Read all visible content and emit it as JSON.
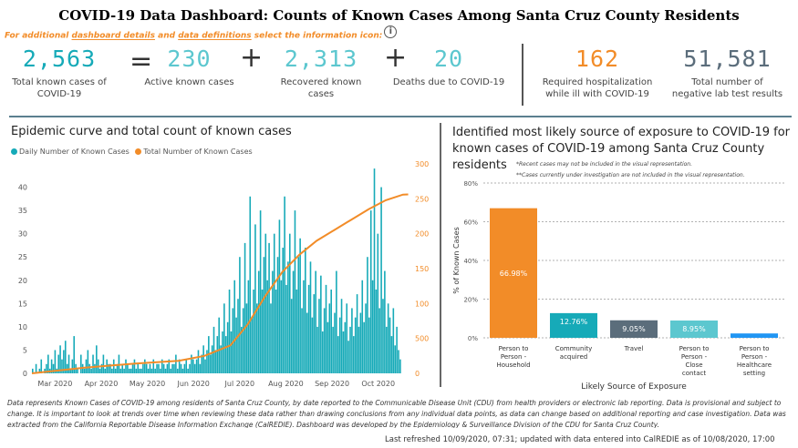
{
  "title": "COVID-19 Data Dashboard: Counts of Known Cases Among Santa Cruz County Residents",
  "info": {
    "prefix": "For additional ",
    "link1": "dashboard details",
    "mid": " and ",
    "link2": "data definitions",
    "suffix": " select the information icon:",
    "icon": "info-icon"
  },
  "kpis": {
    "total": {
      "value": "2,563",
      "label": "Total known cases of COVID-19"
    },
    "active": {
      "value": "230",
      "label": "Active known cases"
    },
    "recovered": {
      "value": "2,313",
      "label": "Recovered known cases"
    },
    "deaths": {
      "value": "20",
      "label": "Deaths due to COVID-19"
    },
    "hospital": {
      "value": "162",
      "label": "Required hospitalization while ill with COVID-19"
    },
    "negative": {
      "value": "51,581",
      "label": "Total number of negative lab test results"
    },
    "eq": "=",
    "plus": "+"
  },
  "colors": {
    "teal": "#16aab8",
    "orange": "#f28c28",
    "slate": "#5b6d7b",
    "blue": "#2196f3",
    "light_teal": "#5cc7cf"
  },
  "epi": {
    "title": "Epidemic curve and total count of known cases",
    "legend_daily": "Daily Number of Known Cases",
    "legend_total": "Total Number of Known Cases"
  },
  "exposure": {
    "title_line1": "Identified most likely source of exposure to COVID-19 for",
    "title_line2": "known cases of COVID-19 among Santa Cruz County",
    "title_line3": "residents",
    "note1": "*Recent cases may not be included in the visual representation.",
    "note2": "**Cases currently under investigation are not included in the visual representation."
  },
  "footer": {
    "text": "Data represents Known Cases of COVID-19 among residents of Santa Cruz County, by date reported to the Communicable Disease Unit (CDU) from health providers or electronic lab reporting.  Data is provisional and subject to change. It is important to look at trends over time when reviewing these data rather than drawing conclusions from any individual data points, as data can change based on additional reporting and case investigation.  Data was extracted from the California Reportable Disease Information Exchange (CalREDIE).  Dashboard was developed by the Epidemiology & Surveillance Division of the CDU for Santa Cruz County.",
    "refresh": "Last refreshed 10/09/2020, 07:31; updated with data entered into CalREDIE as of 10/08/2020, 17:00"
  },
  "chart_data": [
    {
      "type": "bar",
      "title": "Epidemic curve and total count of known cases",
      "x_tick_labels": [
        "Mar 2020",
        "Apr 2020",
        "May 2020",
        "Jun 2020",
        "Jul 2020",
        "Aug 2020",
        "Sep 2020",
        "Oct 2020"
      ],
      "y_left_ticks": [
        0,
        5,
        10,
        15,
        20,
        25,
        30,
        35,
        40
      ],
      "y_right_ticks": [
        0,
        500,
        1000,
        1500,
        2000,
        2500,
        3000
      ],
      "ylim_left": [
        0,
        45
      ],
      "ylim_right": [
        0,
        3000
      ],
      "series": [
        {
          "name": "Daily Number of Known Cases",
          "axis": "left",
          "color": "#16aab8",
          "values": [
            1,
            0,
            2,
            0,
            1,
            3,
            0,
            1,
            2,
            4,
            1,
            3,
            2,
            5,
            1,
            4,
            6,
            3,
            5,
            7,
            2,
            4,
            1,
            3,
            8,
            2,
            1,
            0,
            4,
            2,
            1,
            3,
            5,
            2,
            1,
            4,
            2,
            6,
            3,
            1,
            2,
            4,
            1,
            3,
            2,
            2,
            1,
            3,
            1,
            2,
            4,
            1,
            2,
            1,
            3,
            2,
            1,
            1,
            2,
            3,
            1,
            2,
            1,
            1,
            2,
            3,
            2,
            1,
            2,
            1,
            3,
            1,
            2,
            2,
            1,
            3,
            2,
            1,
            2,
            3,
            1,
            2,
            2,
            4,
            1,
            3,
            2,
            1,
            2,
            3,
            1,
            2,
            4,
            3,
            2,
            3,
            5,
            2,
            4,
            6,
            3,
            5,
            8,
            4,
            6,
            10,
            5,
            8,
            12,
            6,
            9,
            15,
            8,
            11,
            18,
            9,
            14,
            20,
            12,
            16,
            25,
            10,
            14,
            28,
            15,
            20,
            38,
            12,
            18,
            32,
            15,
            22,
            35,
            18,
            25,
            30,
            20,
            28,
            15,
            22,
            30,
            18,
            25,
            33,
            20,
            27,
            38,
            19,
            24,
            30,
            16,
            22,
            35,
            18,
            25,
            29,
            14,
            20,
            27,
            13,
            19,
            24,
            12,
            17,
            22,
            10,
            16,
            21,
            9,
            14,
            19,
            11,
            15,
            18,
            10,
            13,
            22,
            8,
            12,
            16,
            9,
            11,
            15,
            7,
            10,
            14,
            8,
            12,
            17,
            10,
            13,
            20,
            11,
            15,
            25,
            12,
            35,
            20,
            44,
            18,
            30,
            14,
            40,
            16,
            22,
            10,
            15,
            12,
            8,
            14,
            6,
            10,
            5,
            3
          ]
        },
        {
          "name": "Total Number of Known Cases",
          "axis": "right",
          "color": "#f28c28",
          "type": "line",
          "x_index": [
            0,
            30,
            60,
            85,
            100,
            115,
            125,
            135,
            145,
            155,
            165,
            175,
            185,
            195,
            205,
            215,
            218
          ],
          "values": [
            0,
            80,
            140,
            180,
            250,
            400,
            700,
            1100,
            1450,
            1700,
            1900,
            2050,
            2200,
            2350,
            2480,
            2560,
            2563
          ]
        }
      ]
    },
    {
      "type": "bar",
      "title": "Identified most likely source of exposure to COVID-19 for known cases of COVID-19 among Santa Cruz County residents",
      "categories": [
        "Person to Person - Household",
        "Community acquired",
        "Travel",
        "Person to Person - Close contact",
        "Person to Person - Healthcare setting"
      ],
      "values": [
        66.98,
        12.76,
        9.05,
        8.95,
        2.26
      ],
      "data_labels": [
        "66.98%",
        "12.76%",
        "9.05%",
        "8.95%",
        ""
      ],
      "colors": [
        "#f28c28",
        "#16aab8",
        "#5b6d7b",
        "#5cc7cf",
        "#2196f3"
      ],
      "xlabel": "Likely Source of Exposure",
      "ylabel": "% of Known Cases",
      "y_ticks": [
        "0%",
        "20%",
        "40%",
        "60%",
        "80%"
      ],
      "ylim": [
        0,
        80
      ]
    }
  ]
}
